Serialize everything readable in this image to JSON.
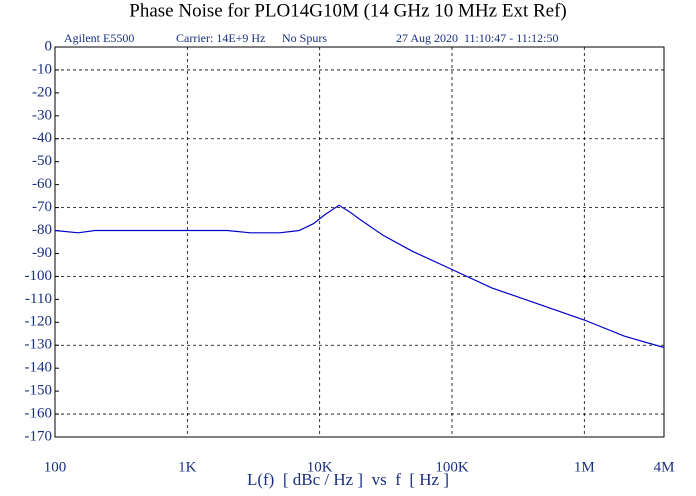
{
  "chart_data": {
    "type": "line",
    "title": "Phase Noise for PLO14G10M (14 GHz 10 MHz Ext Ref)",
    "annotations": [
      "Agilent E5500",
      "Carrier: 14E+9 Hz",
      "No Spurs",
      "27 Aug 2020  11:10:47 - 11:12:50"
    ],
    "x_label": "L(f)  [ dBc / Hz ]  vs  f  [ Hz ]",
    "x": [
      100,
      150,
      200,
      300,
      500,
      700,
      1000,
      2000,
      3000,
      5000,
      7000,
      9000,
      11000,
      14000,
      17000,
      20000,
      30000,
      50000,
      100000,
      200000,
      500000,
      1000000,
      2000000,
      4000000
    ],
    "values": [
      -80,
      -81,
      -80,
      -80,
      -80,
      -80,
      -80,
      -80,
      -81,
      -81,
      -80,
      -77,
      -73,
      -69,
      -72,
      -75,
      -82,
      -89,
      -97,
      -105,
      -113,
      -119,
      -126,
      -131
    ],
    "color": "#0000c8",
    "xscale": "log",
    "xlim": [
      100,
      4000000
    ],
    "xticks": [
      100,
      {
        "value": 1000,
        "label": "1K"
      },
      {
        "value": 10000,
        "label": "10K"
      },
      {
        "value": 100000,
        "label": "100K"
      },
      {
        "value": 1000000,
        "label": "1M"
      },
      {
        "value": 4000000,
        "label": "4M"
      }
    ],
    "ylim": [
      -170,
      0
    ],
    "yticks": [
      0,
      -10,
      -20,
      -30,
      -40,
      -50,
      -60,
      -70,
      -80,
      -90,
      -100,
      -110,
      -120,
      -130,
      -140,
      -150,
      -160,
      -170
    ],
    "grid": true
  }
}
